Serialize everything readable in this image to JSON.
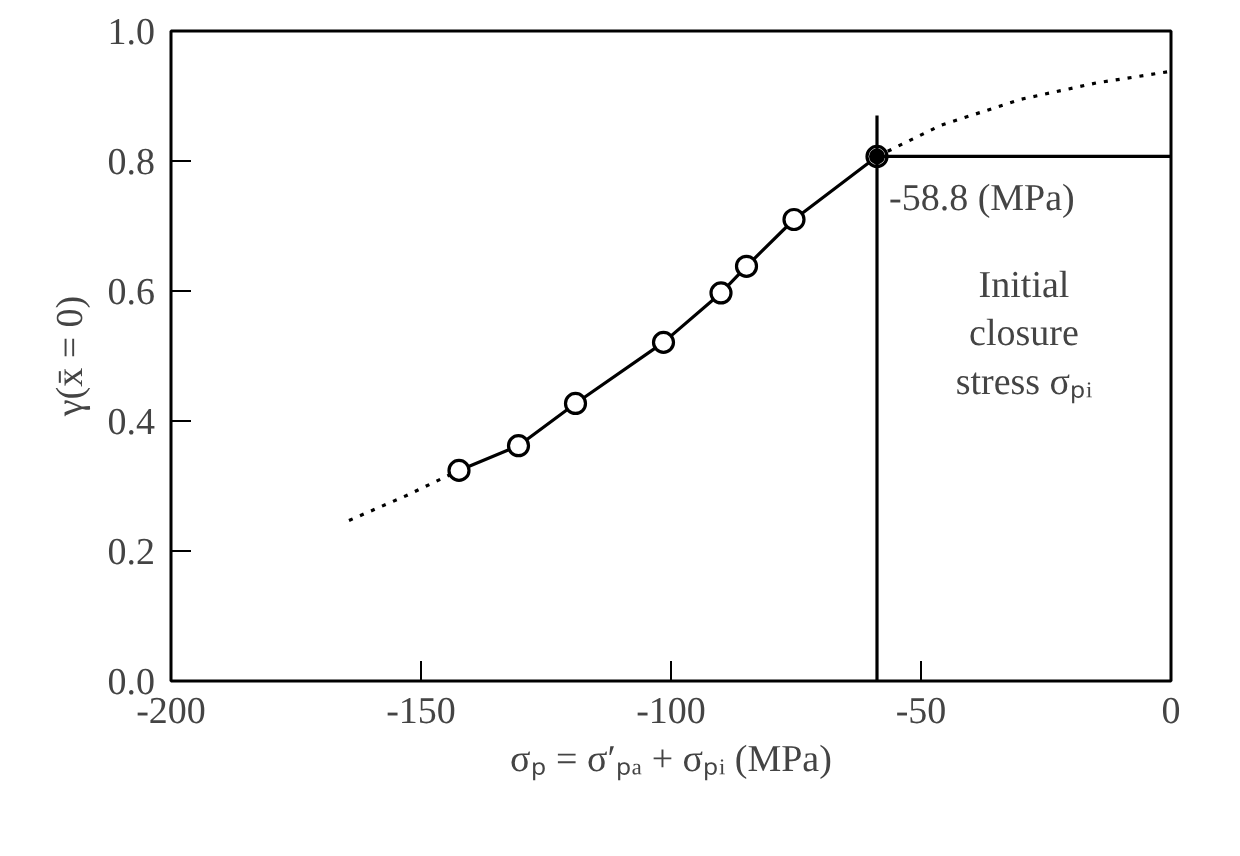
{
  "chart_data": {
    "type": "line",
    "xlabel": "σₚ = σ′ₚₐ + σₚᵢ (MPa)",
    "ylabel": "γ(x̄ = 0)",
    "xlim": [
      -200,
      0
    ],
    "xticks": [
      -200,
      -150,
      -100,
      -50,
      0
    ],
    "ylim": [
      0,
      1.0
    ],
    "yticks": [
      {
        "value": 0,
        "label": "0.0"
      },
      {
        "value": 0.2,
        "label": "0.2"
      },
      {
        "value": 0.4,
        "label": "0.4"
      },
      {
        "value": 0.6,
        "label": "0.6"
      },
      {
        "value": 0.8,
        "label": "0.8"
      },
      {
        "value": 1.0,
        "label": "1.0"
      }
    ],
    "grid": false,
    "series": [
      {
        "line_style": "dotted",
        "color": "#000000",
        "x": [
          -164.4,
          -153,
          -142.4,
          -100,
          -58.8,
          -46,
          -30,
          -15,
          0
        ],
        "values": [
          0.247,
          0.285,
          0.324,
          null,
          0.807,
          0.855,
          0.895,
          0.92,
          0.938
        ]
      },
      {
        "line_style": "solid",
        "marker": "circle",
        "color": "#000000",
        "x": [
          -142.4,
          -130.5,
          -119.1,
          -101.5,
          -90.0,
          -84.9,
          -75.4,
          -58.8
        ],
        "values": [
          0.324,
          0.362,
          0.427,
          0.521,
          0.597,
          0.638,
          0.71,
          0.807
        ]
      },
      {
        "type": "scatter",
        "marker": "circle",
        "color": "#000000",
        "x": [
          -58.8
        ],
        "values": [
          0.807
        ]
      },
      {
        "line_style": "solid",
        "color": "#000000",
        "x": [
          -58.8,
          -58.8
        ],
        "values": [
          0,
          0.87
        ]
      },
      {
        "line_style": "solid",
        "color": "#000000",
        "x": [
          -58.8,
          0
        ],
        "values": [
          0.807,
          0.807
        ]
      }
    ],
    "annotations": [
      {
        "text": "-58.8 (MPa)",
        "x": -58.8,
        "y": 0.807
      },
      "Initial\nclosure\nstress σₚᵢ"
    ]
  }
}
